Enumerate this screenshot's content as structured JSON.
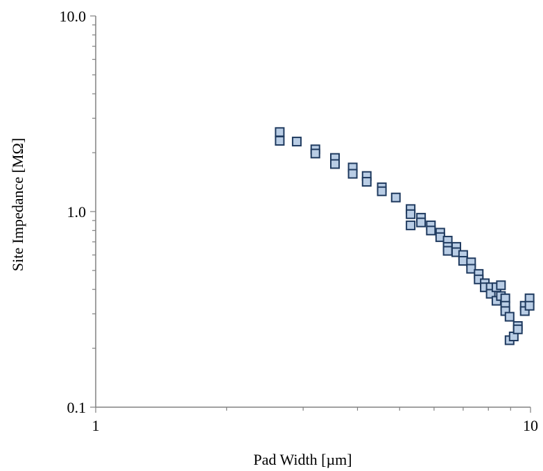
{
  "chart_data": {
    "type": "scatter",
    "title": "",
    "xlabel": "Pad Width [µm]",
    "ylabel": "Site Impedance [MΩ]",
    "xscale": "log",
    "yscale": "log",
    "xlim": [
      1,
      10
    ],
    "ylim": [
      0.1,
      10.0
    ],
    "x_ticks": [
      {
        "value": 1,
        "label": "1"
      },
      {
        "value": 10,
        "label": "10"
      }
    ],
    "y_ticks": [
      {
        "value": 0.1,
        "label": "0.1"
      },
      {
        "value": 1.0,
        "label": "1.0"
      },
      {
        "value": 10.0,
        "label": "10.0"
      }
    ],
    "grid": false,
    "legend": "none",
    "marker": {
      "shape": "square",
      "fill": "#b9cde5",
      "stroke": "#1f3a5f"
    },
    "series": [
      {
        "points": [
          {
            "x": 2.65,
            "y": 2.55
          },
          {
            "x": 2.65,
            "y": 2.3
          },
          {
            "x": 2.9,
            "y": 2.28
          },
          {
            "x": 3.2,
            "y": 2.08
          },
          {
            "x": 3.2,
            "y": 1.98
          },
          {
            "x": 3.55,
            "y": 1.88
          },
          {
            "x": 3.55,
            "y": 1.75
          },
          {
            "x": 3.9,
            "y": 1.68
          },
          {
            "x": 3.9,
            "y": 1.56
          },
          {
            "x": 4.2,
            "y": 1.52
          },
          {
            "x": 4.2,
            "y": 1.42
          },
          {
            "x": 4.55,
            "y": 1.33
          },
          {
            "x": 4.55,
            "y": 1.27
          },
          {
            "x": 4.9,
            "y": 1.18
          },
          {
            "x": 5.3,
            "y": 1.03
          },
          {
            "x": 5.3,
            "y": 0.97
          },
          {
            "x": 5.3,
            "y": 0.85
          },
          {
            "x": 5.6,
            "y": 0.93
          },
          {
            "x": 5.6,
            "y": 0.88
          },
          {
            "x": 5.9,
            "y": 0.85
          },
          {
            "x": 5.9,
            "y": 0.8
          },
          {
            "x": 6.2,
            "y": 0.78
          },
          {
            "x": 6.2,
            "y": 0.74
          },
          {
            "x": 6.45,
            "y": 0.71
          },
          {
            "x": 6.45,
            "y": 0.66
          },
          {
            "x": 6.45,
            "y": 0.63
          },
          {
            "x": 6.75,
            "y": 0.66
          },
          {
            "x": 6.75,
            "y": 0.62
          },
          {
            "x": 7.0,
            "y": 0.6
          },
          {
            "x": 7.0,
            "y": 0.56
          },
          {
            "x": 7.3,
            "y": 0.55
          },
          {
            "x": 7.3,
            "y": 0.51
          },
          {
            "x": 7.6,
            "y": 0.48
          },
          {
            "x": 7.6,
            "y": 0.45
          },
          {
            "x": 7.85,
            "y": 0.43
          },
          {
            "x": 7.85,
            "y": 0.41
          },
          {
            "x": 8.1,
            "y": 0.41
          },
          {
            "x": 8.1,
            "y": 0.38
          },
          {
            "x": 8.35,
            "y": 0.41
          },
          {
            "x": 8.35,
            "y": 0.35
          },
          {
            "x": 8.55,
            "y": 0.42
          },
          {
            "x": 8.55,
            "y": 0.37
          },
          {
            "x": 8.75,
            "y": 0.36
          },
          {
            "x": 8.75,
            "y": 0.33
          },
          {
            "x": 8.75,
            "y": 0.31
          },
          {
            "x": 8.95,
            "y": 0.29
          },
          {
            "x": 8.95,
            "y": 0.22
          },
          {
            "x": 9.15,
            "y": 0.23
          },
          {
            "x": 9.35,
            "y": 0.26
          },
          {
            "x": 9.35,
            "y": 0.25
          },
          {
            "x": 9.7,
            "y": 0.33
          },
          {
            "x": 9.7,
            "y": 0.31
          },
          {
            "x": 9.95,
            "y": 0.36
          },
          {
            "x": 9.95,
            "y": 0.33
          }
        ]
      }
    ]
  }
}
